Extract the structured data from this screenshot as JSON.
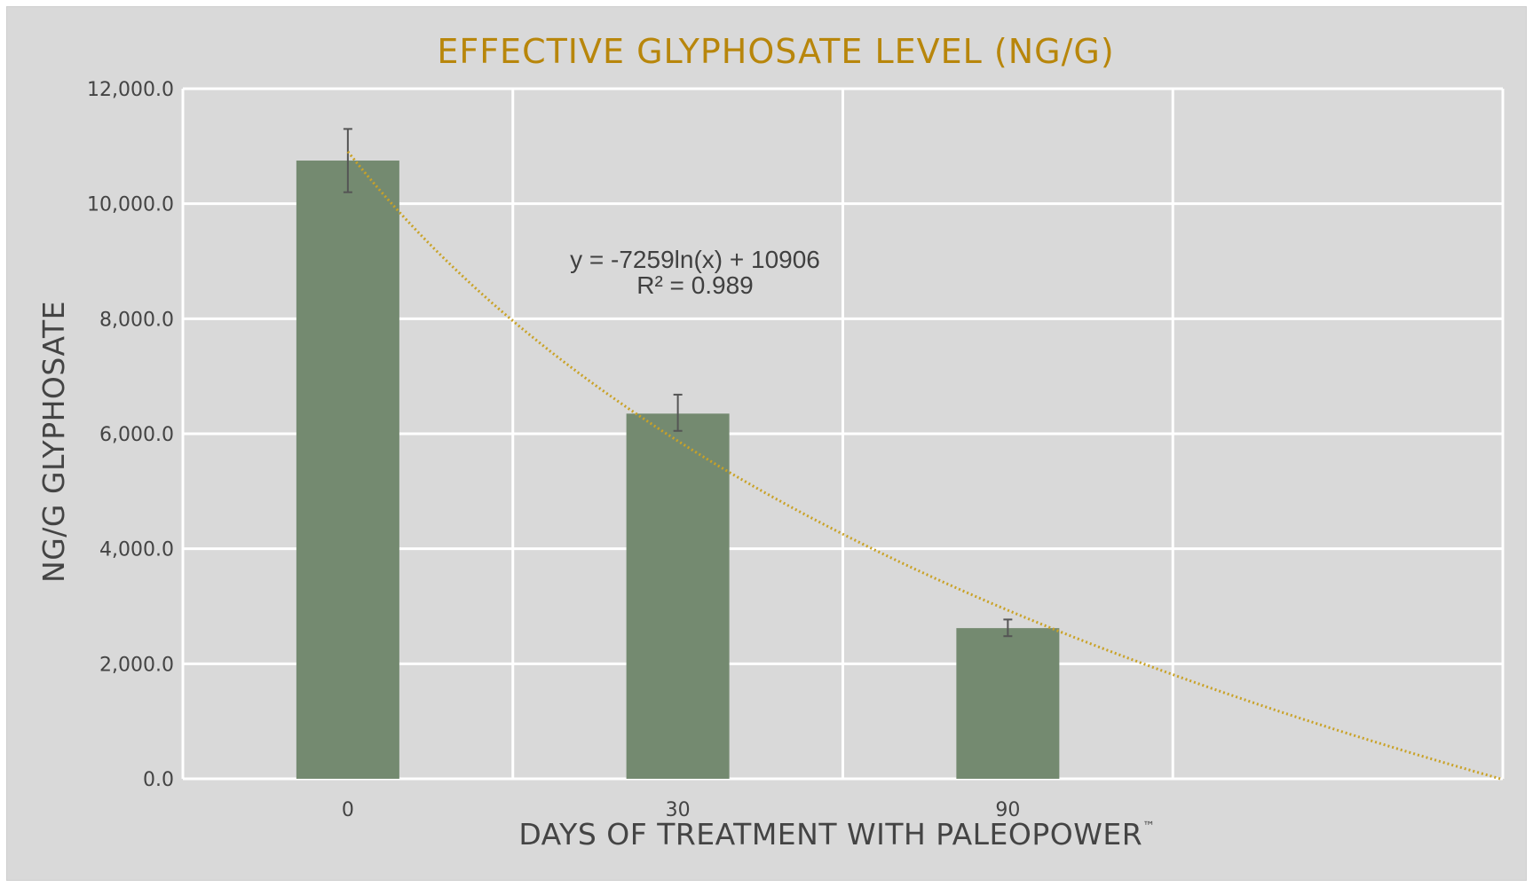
{
  "chart_data": {
    "type": "bar",
    "title": "EFFECTIVE GLYPHOSATE LEVEL (NG/G)",
    "xlabel": "DAYS OF TREATMENT WITH PALEOPOWER",
    "xlabel_mark": "™",
    "ylabel": "NG/G GLYPHOSATE",
    "categories": [
      "0",
      "30",
      "90"
    ],
    "values": [
      10750,
      6350,
      2620
    ],
    "error_bars": [
      {
        "low": 10200,
        "high": 11300
      },
      {
        "low": 6050,
        "high": 6680
      },
      {
        "low": 2480,
        "high": 2770
      }
    ],
    "ylim": [
      0,
      12000
    ],
    "yticks": [
      0,
      2000,
      4000,
      6000,
      8000,
      10000,
      12000
    ],
    "ytick_labels": [
      "0.0",
      "2,000.0",
      "4,000.0",
      "6,000.0",
      "8,000.0",
      "10,000.0",
      "12,000.0"
    ],
    "slots": 4,
    "grid": true,
    "trendline": {
      "type": "logarithmic",
      "a": -7259,
      "b": 10906,
      "x_start": 1,
      "x_end": 4.5,
      "equation": "y = -7259ln(x) + 10906",
      "r_squared": "R² = 0.989"
    },
    "colors": {
      "bar": "#748a70",
      "trend": "#c9a227",
      "title": "#b8860b",
      "background": "#d9d9d9",
      "grid": "#ffffff"
    }
  }
}
